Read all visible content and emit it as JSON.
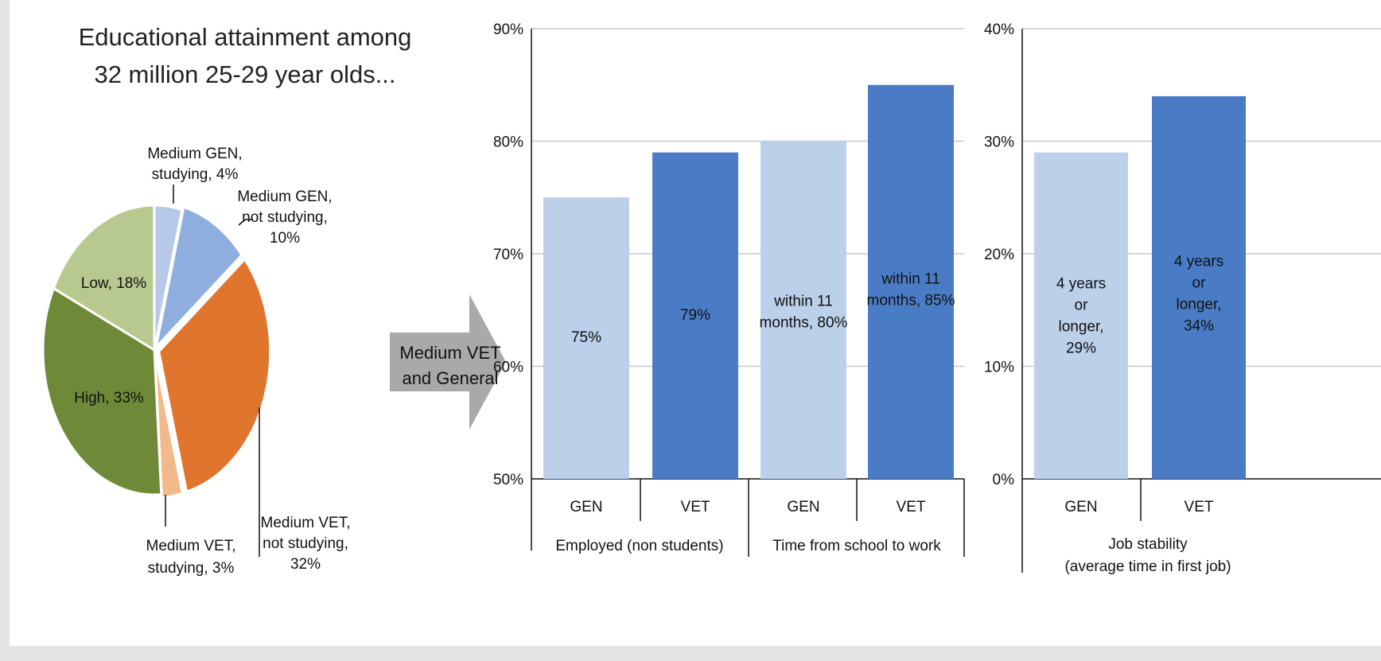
{
  "pie_title_line1": "Educational attainment among",
  "pie_title_line2": "32 million 25-29 year olds...",
  "arrow_label_line1": "Medium VET",
  "arrow_label_line2": "and General",
  "chart_data": [
    {
      "type": "pie",
      "title": "Educational attainment among 32 million 25-29 year olds...",
      "slices": [
        {
          "label": "Medium GEN, studying",
          "value": 4,
          "label_lines": [
            "Medium GEN,",
            "studying, 4%"
          ],
          "color": "#b7c9e8"
        },
        {
          "label": "Medium GEN, not studying",
          "value": 10,
          "label_lines": [
            "Medium GEN,",
            "not studying,",
            "10%"
          ],
          "color": "#8eaee0"
        },
        {
          "label": "Medium VET, not studying",
          "value": 32,
          "label_lines": [
            "Medium VET,",
            "not studying,",
            "32%"
          ],
          "color": "#e0752e"
        },
        {
          "label": "Medium VET, studying",
          "value": 3,
          "label_lines": [
            "Medium VET,",
            "studying, 3%"
          ],
          "color": "#f2b98a"
        },
        {
          "label": "High",
          "value": 33,
          "label_lines": [
            "High, 33%"
          ],
          "color": "#6e8a38"
        },
        {
          "label": "Low",
          "value": 18,
          "label_lines": [
            "Low, 18%"
          ],
          "color": "#b8c98f"
        }
      ]
    },
    {
      "type": "bar",
      "ylim": [
        50,
        90
      ],
      "yticks": [
        "90%",
        "80%",
        "70%",
        "60%",
        "50%"
      ],
      "categories": [
        "GEN",
        "VET",
        "GEN",
        "VET"
      ],
      "groups": [
        "Employed (non students)",
        "Time from school to work"
      ],
      "values": [
        75,
        79,
        80,
        85
      ],
      "colors": [
        "#bcd0ea",
        "#4a7cc6",
        "#bcd0ea",
        "#4a7cc6"
      ],
      "data_labels": [
        [
          "75%"
        ],
        [
          "79%"
        ],
        [
          "within 11",
          "months, 80%"
        ],
        [
          "within 11",
          "months, 85%"
        ]
      ]
    },
    {
      "type": "bar",
      "ylim": [
        0,
        40
      ],
      "yticks": [
        "40%",
        "30%",
        "20%",
        "10%",
        "0%"
      ],
      "categories": [
        "GEN",
        "VET"
      ],
      "group_lines": [
        "Job stability",
        "(average time in first job)"
      ],
      "values": [
        29,
        34
      ],
      "colors": [
        "#bcd0ea",
        "#4a7cc6"
      ],
      "data_labels": [
        [
          "4 years",
          "or",
          "longer,",
          "29%"
        ],
        [
          "4 years",
          "or",
          "longer,",
          "34%"
        ]
      ]
    }
  ]
}
